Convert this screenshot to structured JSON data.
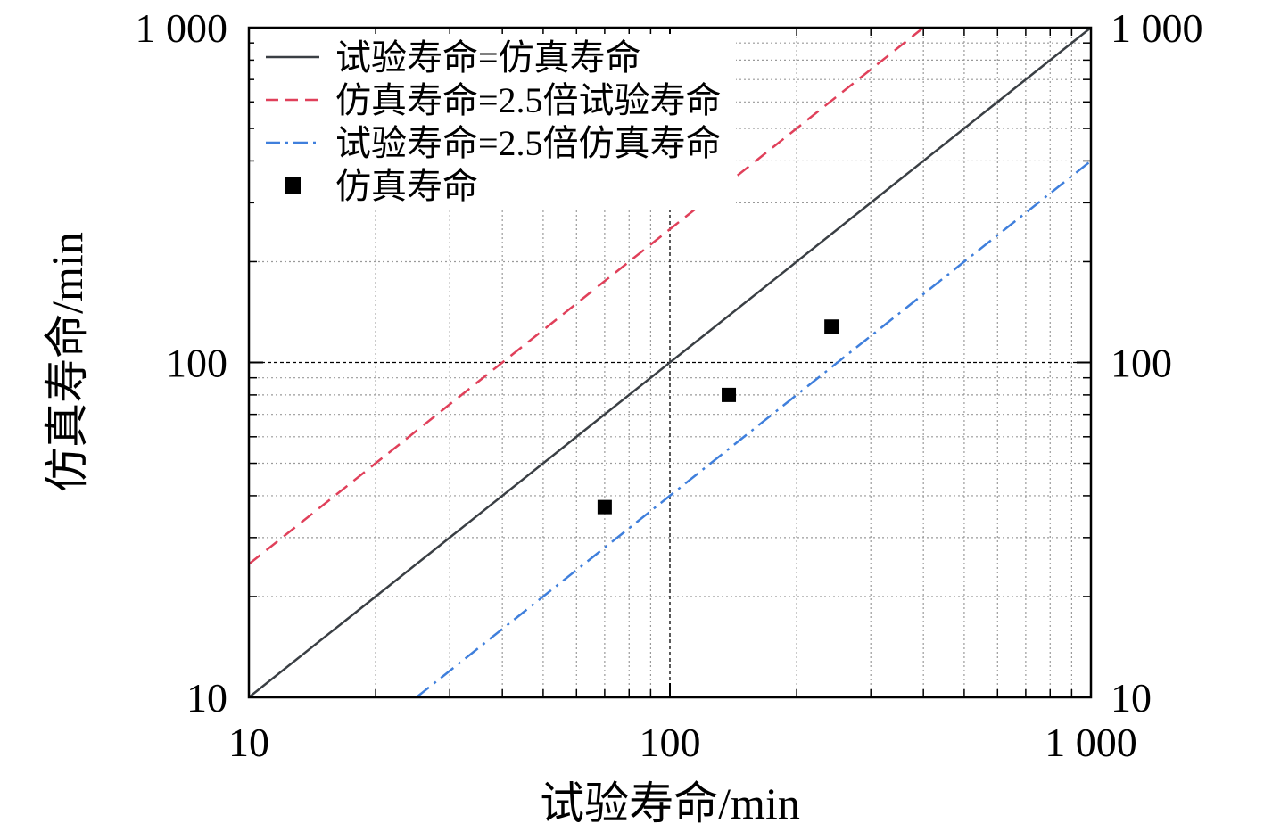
{
  "chart_data": {
    "type": "scatter",
    "title": "",
    "xlabel": "试验寿命/min",
    "ylabel": "仿真寿命/min",
    "x_scale": "log",
    "y_scale": "log",
    "xlim": [
      10,
      1000
    ],
    "ylim": [
      10,
      1000
    ],
    "x_ticks": [
      10,
      100,
      1000
    ],
    "x_tick_labels": [
      "10",
      "100",
      "1 000"
    ],
    "y_ticks": [
      10,
      100,
      1000
    ],
    "y_tick_labels": [
      "10",
      "100",
      "1 000"
    ],
    "right_axis_tick_labels": [
      "10",
      "100",
      "1 000"
    ],
    "grid": true,
    "legend_position": "top-left",
    "series": [
      {
        "name": "试验寿命=仿真寿命",
        "kind": "line",
        "style": "solid",
        "color": "#3a3f44",
        "x": [
          10,
          1000
        ],
        "y": [
          10,
          1000
        ]
      },
      {
        "name": "仿真寿命=2.5倍试验寿命",
        "kind": "line",
        "style": "dashed",
        "color": "#e0405a",
        "x": [
          10,
          400
        ],
        "y": [
          25,
          1000
        ]
      },
      {
        "name": "试验寿命=2.5倍仿真寿命",
        "kind": "line",
        "style": "dashdot",
        "color": "#3f7fdc",
        "x": [
          25,
          1000
        ],
        "y": [
          10,
          400
        ]
      },
      {
        "name": "仿真寿命",
        "kind": "points",
        "marker": "square",
        "color": "#000000",
        "x": [
          70,
          138,
          242
        ],
        "y": [
          37,
          80,
          128
        ]
      }
    ]
  }
}
